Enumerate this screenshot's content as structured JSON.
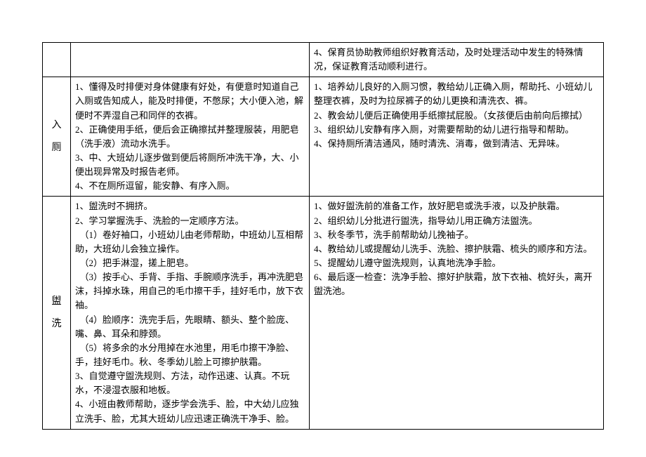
{
  "rows": [
    {
      "label": "",
      "left": "",
      "right": "4、保育员协助教师组织好教育活动，及时处理活动中发生的特殊情况，保证教育活动顺利进行。"
    },
    {
      "label": "入厕",
      "left": "1、懂得及时排便对身体健康有好处，有便意时知道自己入厕或告知成人，能及时排便，不憋尿；大小便入池，解便时不弄湿自己和同伴的衣裤。\n2、正确使用手纸，便后会正确擦拭并整理服装，用肥皂（洗手液）流动水洗手。\n3、中、大班幼儿逐步做到便后将厕所冲洗干净，大、小便出现异常及时报告老师。\n4、不在厕所逗留，能安静、有序入厕。",
      "right": "1、培养幼儿良好的入厕习惯，教给幼儿正确入厕，帮助托、小班幼儿整理衣裤，及时为拉尿裤子的幼儿更换和清洗衣、裤。\n2、教会幼儿便后正确使用手纸擦拭屁股。（女孩便后由前向后擦拭）\n3、组织幼儿安静有序入厕，对需要帮助的幼儿进行指导和帮助。\n4、保持厕所清洁通风，随时清洗、消毒，做到清洁、无异味。"
    },
    {
      "label": "盥洗",
      "left": "1、盥洗时不拥挤。\n2、学习掌握洗手、洗脸的一定顺序方法。\n　（1）卷好袖口，小班幼儿由老师帮助，中班幼儿互相帮助，大班幼儿会独立操作。\n　（2）把手淋湿，搓上肥皂。\n　（3）按手心、手背、手指、手腕顺序洗手，再冲洗肥皂沫，抖掉水珠，用自己的毛巾擦干手，挂好毛巾，放下衣袖。\n　（4）脸顺序：洗完手后，先眼睛、额头、整个脸庞、嘴、鼻、耳朵和脖颈。\n　（5）将多余的水分甩掉在水池里，用毛巾擦干净脸、手，挂好毛巾。秋、冬季幼儿脸上可擦护肤霜。\n3、自觉遵守盥洗规则、方法，动作迅速、认真。不玩水，不浸湿衣服和地板。\n4、小班由教师帮助，逐步学会洗手、脸，中大幼儿应独立洗手、脸，尤其大班幼儿应迅速正确洗干净手、脸。",
      "right": "1、做好盥洗前的准备工作，放好肥皂或洗手液，以及护肤霜。\n2、组织幼儿分批进行盥洗，指导幼儿用正确方法盥洗。\n3、秋冬季节，洗手前帮助幼儿挽袖子。\n4、教给幼儿或提醒幼儿洗手、洗脸、擦护肤霜、梳头的顺序和方法。\n5、提醒幼儿遵守盥洗规则，认真地洗净手脸。\n6、最后逐一检查：洗净手脸、擦好护肤霜，放下衣袖、梳好头，离开盥洗池。"
    }
  ],
  "style": {
    "border_color": "#000000",
    "font_family": "SimSun",
    "font_size_pt": 10.5,
    "background": "#ffffff"
  }
}
